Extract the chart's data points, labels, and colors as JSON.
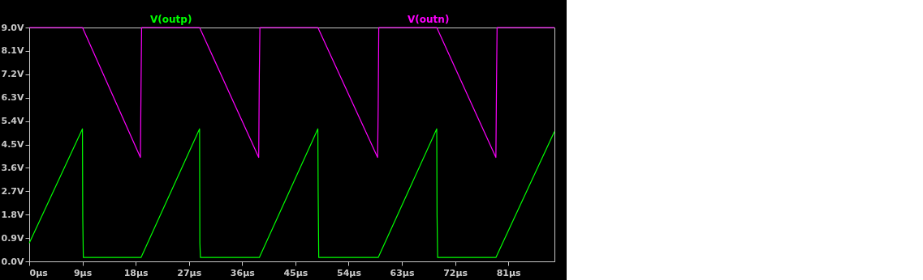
{
  "chart_data": {
    "type": "line",
    "legend": "top",
    "grid": false,
    "marker": "none",
    "line_style": "solid",
    "xlim": [
      0,
      88.8
    ],
    "ylim": [
      0,
      9
    ],
    "xticks": [
      {
        "value": 0,
        "label": "0µs"
      },
      {
        "value": 9,
        "label": "9µs"
      },
      {
        "value": 18,
        "label": "18µs"
      },
      {
        "value": 27,
        "label": "27µs"
      },
      {
        "value": 36,
        "label": "36µs"
      },
      {
        "value": 45,
        "label": "45µs"
      },
      {
        "value": 54,
        "label": "54µs"
      },
      {
        "value": 63,
        "label": "63µs"
      },
      {
        "value": 72,
        "label": "72µs"
      },
      {
        "value": 81,
        "label": "81µs"
      }
    ],
    "yticks": [
      {
        "value": 0,
        "label": "0.0V"
      },
      {
        "value": 0.9,
        "label": "0.9V"
      },
      {
        "value": 1.8,
        "label": "1.8V"
      },
      {
        "value": 2.7,
        "label": "2.7V"
      },
      {
        "value": 3.6,
        "label": "3.6V"
      },
      {
        "value": 4.5,
        "label": "4.5V"
      },
      {
        "value": 5.4,
        "label": "5.4V"
      },
      {
        "value": 6.3,
        "label": "6.3V"
      },
      {
        "value": 7.2,
        "label": "7.2V"
      },
      {
        "value": 8.1,
        "label": "8.1V"
      },
      {
        "value": 9,
        "label": "9.0V"
      }
    ],
    "series": [
      {
        "name": "V(outp)",
        "color": "#00ff00",
        "x": [
          0,
          9.0,
          9.05,
          9.15,
          18.9,
          28.8,
          28.85,
          28.95,
          38.9,
          48.8,
          48.85,
          48.95,
          59.0,
          68.9,
          68.95,
          69.05,
          78.9,
          88.8
        ],
        "values": [
          0.7,
          5.1,
          1.7,
          0.15,
          0.15,
          5.1,
          0.7,
          0.15,
          0.15,
          5.1,
          2.7,
          0.15,
          0.15,
          5.1,
          1.8,
          0.15,
          0.15,
          5.0
        ]
      },
      {
        "name": "V(outn)",
        "color": "#ff00ff",
        "x": [
          0,
          9.0,
          18.8,
          18.9,
          19.0,
          28.8,
          38.8,
          38.9,
          39.0,
          48.8,
          58.9,
          59.0,
          59.1,
          68.9,
          78.9,
          79.0,
          79.1,
          88.8
        ],
        "values": [
          9,
          9,
          4.0,
          6.6,
          9,
          9,
          4.0,
          7.2,
          9,
          9,
          4.0,
          5.9,
          9,
          9,
          4.0,
          6.8,
          9,
          9
        ]
      }
    ]
  }
}
